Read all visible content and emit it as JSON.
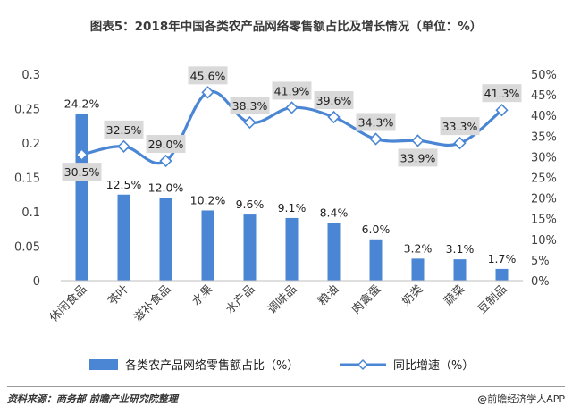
{
  "title": "图表5：2018年中国各类农产品网络零售额占比及增长情况（单位：%）",
  "source": "资料来源：商务部 前瞻产业研究院整理",
  "brand_symbol": "@",
  "brand": "前瞻经济学人APP",
  "colors": {
    "bar": "#4a86d4",
    "line": "#4a86d4",
    "label_bg": "#d9d9d9",
    "axis_text": "#404040"
  },
  "chart_data": {
    "type": "bar+line",
    "categories": [
      "休闲食品",
      "茶叶",
      "滋补食品",
      "水果",
      "水产品",
      "调味品",
      "粮油",
      "肉禽蛋",
      "奶类",
      "蔬菜",
      "豆制品"
    ],
    "series": [
      {
        "name": "各类农产品网络零售额占比（%）",
        "type": "bar",
        "axis": "left",
        "values": [
          0.242,
          0.125,
          0.12,
          0.102,
          0.096,
          0.091,
          0.084,
          0.06,
          0.032,
          0.031,
          0.017
        ],
        "labels": [
          "24.2%",
          "12.5%",
          "12.0%",
          "10.2%",
          "9.6%",
          "9.1%",
          "8.4%",
          "6.0%",
          "3.2%",
          "3.1%",
          "1.7%"
        ]
      },
      {
        "name": "同比增速（%）",
        "type": "line",
        "axis": "right",
        "values": [
          30.5,
          32.5,
          29.0,
          45.6,
          38.3,
          41.9,
          39.6,
          34.3,
          33.9,
          33.3,
          41.3
        ],
        "labels": [
          "30.5%",
          "32.5%",
          "29.0%",
          "45.6%",
          "38.3%",
          "41.9%",
          "39.6%",
          "34.3%",
          "33.9%",
          "33.3%",
          "41.3%"
        ]
      }
    ],
    "y_left": {
      "min": 0,
      "max": 0.3,
      "ticks": [
        0,
        0.05,
        0.1,
        0.15,
        0.2,
        0.25,
        0.3
      ],
      "tick_labels": [
        "0",
        "0.05",
        "0.1",
        "0.15",
        "0.2",
        "0.25",
        "0.3"
      ]
    },
    "y_right": {
      "min": 0,
      "max": 50,
      "ticks": [
        0,
        5,
        10,
        15,
        20,
        25,
        30,
        35,
        40,
        45,
        50
      ],
      "tick_labels": [
        "0%",
        "5%",
        "10%",
        "15%",
        "20%",
        "25%",
        "30%",
        "35%",
        "40%",
        "45%",
        "50%"
      ]
    },
    "legend_position": "bottom",
    "grid": false
  }
}
